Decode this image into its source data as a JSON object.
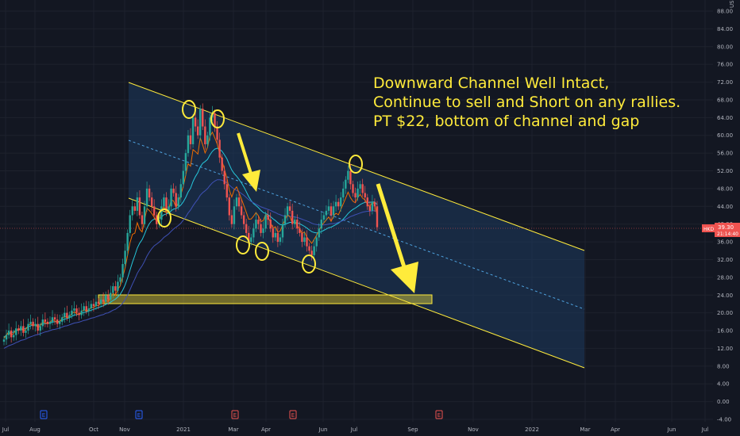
{
  "chart_data": {
    "type": "candlestick",
    "currency": "USD",
    "ylim": [
      -4,
      88
    ],
    "price_ticks": [
      "88.00",
      "84.00",
      "80.00",
      "76.00",
      "72.00",
      "68.00",
      "64.00",
      "60.00",
      "56.00",
      "52.00",
      "48.00",
      "44.00",
      "40.00",
      "36.00",
      "32.00",
      "28.00",
      "24.00",
      "20.00",
      "16.00",
      "12.00",
      "8.00",
      "4.00",
      "0.00",
      "-4.00"
    ],
    "time_ticks": [
      "Jul",
      "Aug",
      "Oct",
      "Nov",
      "2021",
      "Mar",
      "Apr",
      "Jun",
      "Jul",
      "Sep",
      "Nov",
      "2022",
      "Mar",
      "Apr",
      "Jun",
      "Jul"
    ],
    "last_price": "39.30",
    "ticker_label": "HKD",
    "countdown": "21:14:40",
    "annotation_lines": [
      "Downward Channel Well Intact,",
      "Continue to sell and Short on any rallies.",
      "PT  $22, bottom of channel and gap"
    ],
    "event_markers": [
      "E",
      "E",
      "E",
      "E",
      "E"
    ],
    "colors": {
      "background": "#131722",
      "up": "#26a69a",
      "down": "#ef5350",
      "channel_line": "#ffeb3b",
      "channel_fill": "#1e3a5f",
      "annotation": "#ffeb3b",
      "price_line": "#ef5350"
    },
    "close_series": [
      14,
      15,
      16,
      14.5,
      15,
      16.5,
      16,
      17,
      15.5,
      16,
      17.5,
      18,
      17,
      17.5,
      16,
      17,
      18.5,
      18,
      17.5,
      18,
      19,
      18.5,
      17.5,
      18,
      19,
      20,
      19,
      19.5,
      20.5,
      21,
      20,
      19.5,
      20.5,
      21.5,
      20.5,
      21,
      22,
      21.5,
      22.5,
      22,
      23,
      22.5,
      24,
      23,
      24.5,
      26,
      25,
      27,
      28,
      31,
      34,
      38,
      42,
      44,
      43,
      46,
      42,
      40,
      44,
      48,
      46,
      44,
      42,
      40,
      41,
      44,
      46,
      43,
      44,
      48,
      47,
      44,
      46,
      49,
      52,
      56,
      60,
      58,
      64,
      62,
      60,
      66,
      62,
      58,
      60,
      64,
      65,
      62,
      59,
      55,
      52,
      49,
      46,
      42,
      40,
      44,
      46,
      44,
      42,
      40,
      38,
      36,
      37,
      39,
      41,
      40,
      38,
      39,
      42,
      41,
      39,
      37,
      38,
      36,
      37,
      40,
      42,
      44,
      43,
      40,
      41,
      39,
      38,
      36,
      37,
      35,
      34,
      33,
      35,
      37,
      39,
      41,
      42,
      43,
      44,
      42,
      44,
      45,
      44,
      46,
      48,
      50,
      52,
      49,
      47,
      46,
      48,
      49,
      47,
      46,
      44,
      43,
      45,
      44,
      39.3
    ],
    "ma_fast_series": [
      14.5,
      15,
      15.5,
      15.5,
      15.7,
      16,
      16.1,
      16.4,
      16.3,
      16.5,
      16.8,
      17.1,
      17.2,
      17.3,
      17.2,
      17.3,
      17.5,
      17.6,
      17.6,
      17.7,
      17.9,
      18,
      18,
      18.1,
      18.3,
      18.6,
      18.7,
      18.9,
      19.2,
      19.5,
      19.6,
      19.7,
      19.9,
      20.1,
      20.2,
      20.4,
      20.6,
      20.8,
      21,
      21.2,
      21.4,
      21.6,
      21.9,
      22.1,
      22.4,
      22.8,
      23.1,
      23.6,
      24.2,
      25.1,
      26.3,
      27.8,
      29.6,
      31.4,
      32.9,
      34.6,
      35.7,
      36.5,
      37.7,
      39.1,
      40.1,
      40.8,
      41.1,
      41.1,
      41.2,
      41.6,
      42.1,
      42.3,
      42.5,
      43,
      43.4,
      43.5,
      43.8,
      44.3,
      45,
      46,
      47.2,
      48.1,
      49.6,
      50.7,
      51.6,
      52.9,
      53.7,
      54.1,
      54.6,
      55.6,
      56.4,
      56.9,
      57.1,
      56.9,
      56.4,
      55.6,
      54.7,
      53.4,
      52.2,
      51.4,
      50.8,
      50.1,
      49.3,
      48.4,
      47.3,
      46.2,
      45.3,
      44.6,
      44.2,
      43.7,
      43.1,
      42.6,
      42.4,
      42.1,
      41.7,
      41.2,
      40.8,
      40.3,
      39.9,
      39.8,
      39.9,
      40.2,
      40.4,
      40.4,
      40.4,
      40.3,
      40.1,
      39.8,
      39.5,
      39.1,
      38.7,
      38.3,
      38.1,
      38,
      38.1,
      38.3,
      38.6,
      38.9,
      39.2,
      39.3,
      39.6,
      39.9,
      40.2,
      40.6,
      41.1,
      41.7,
      42.4,
      42.9,
      43.3,
      43.6,
      44,
      44.4,
      44.7,
      44.9,
      44.9,
      44.9,
      45,
      45,
      44.4
    ],
    "ma_slow_series": [
      12,
      12.3,
      12.6,
      12.8,
      13,
      13.3,
      13.5,
      13.8,
      13.9,
      14.1,
      14.4,
      14.6,
      14.8,
      15,
      15.1,
      15.3,
      15.5,
      15.7,
      15.8,
      16,
      16.2,
      16.3,
      16.4,
      16.6,
      16.8,
      17,
      17.1,
      17.3,
      17.5,
      17.7,
      17.8,
      17.9,
      18.1,
      18.3,
      18.4,
      18.6,
      18.8,
      18.9,
      19.1,
      19.3,
      19.5,
      19.6,
      19.9,
      20,
      20.3,
      20.6,
      20.8,
      21.2,
      21.6,
      22.2,
      23,
      24,
      25.2,
      26.5,
      27.6,
      28.9,
      29.8,
      30.6,
      31.6,
      32.8,
      33.7,
      34.5,
      35.1,
      35.5,
      35.9,
      36.4,
      37,
      37.4,
      37.8,
      38.4,
      38.9,
      39.3,
      39.7,
      40.2,
      40.9,
      41.6,
      42.5,
      43.2,
      44.1,
      44.9,
      45.6,
      46.5,
      47.1,
      47.5,
      48,
      48.7,
      49.3,
      49.7,
      50,
      50,
      49.9,
      49.6,
      49.3,
      48.8,
      48.3,
      47.9,
      47.6,
      47.3,
      46.9,
      46.5,
      46,
      45.5,
      45.1,
      44.8,
      44.5,
      44.2,
      43.9,
      43.7,
      43.5,
      43.3,
      43.1,
      42.8,
      42.6,
      42.3,
      42.1,
      41.9,
      41.8,
      41.8,
      41.8,
      41.7,
      41.6,
      41.5,
      41.3,
      41.1,
      40.9,
      40.7,
      40.5,
      40.2,
      40,
      39.9,
      39.8,
      39.8,
      39.8,
      39.9,
      40,
      40.1,
      40.1,
      40.2,
      40.4,
      40.6,
      40.8,
      41.1,
      41.4,
      41.7,
      41.9,
      42.1,
      42.3,
      42.5,
      42.7,
      42.8,
      42.9,
      42.9,
      43,
      43,
      42.8
    ]
  }
}
